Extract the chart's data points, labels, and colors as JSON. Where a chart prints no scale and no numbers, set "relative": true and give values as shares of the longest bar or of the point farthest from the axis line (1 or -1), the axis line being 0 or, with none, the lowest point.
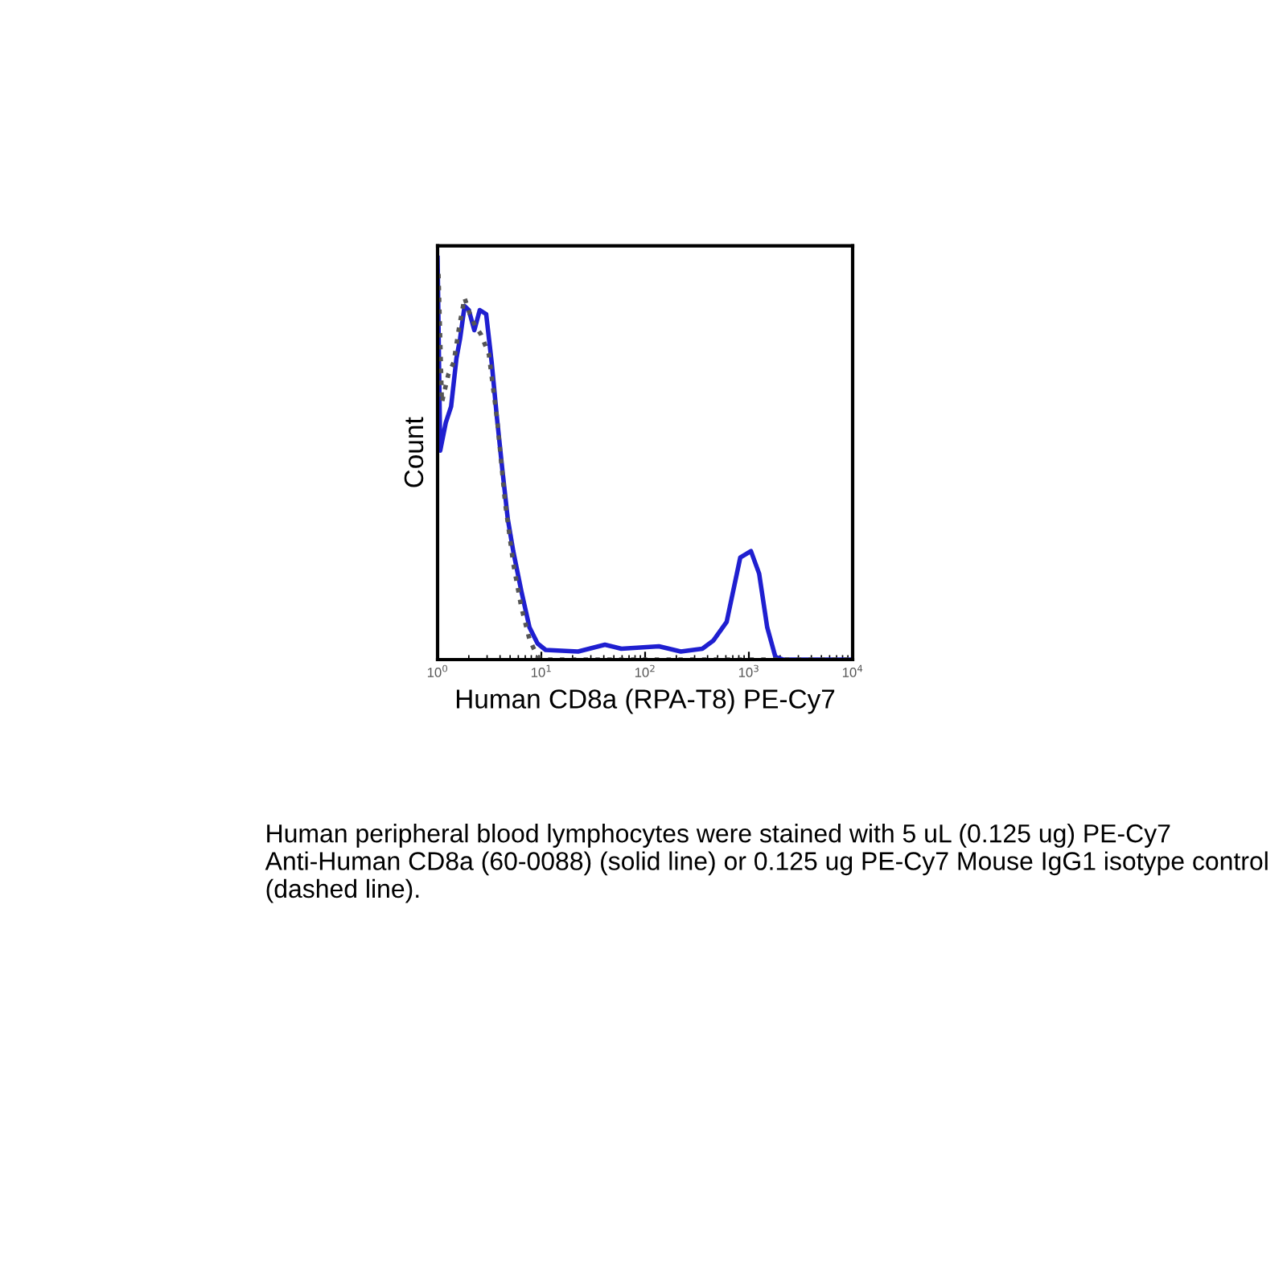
{
  "chart_data": {
    "type": "line",
    "relative": true,
    "log": "x",
    "xlabel": "Human CD8a (RPA-T8) PE-Cy7",
    "ylabel": "Count",
    "xlim": [
      1,
      10000
    ],
    "xticks": [
      {
        "value": 1,
        "label": "10$^{0}$"
      },
      {
        "value": 10,
        "label": "10$^{1}$"
      },
      {
        "value": 100,
        "label": "10$^{2}$"
      },
      {
        "value": 1000,
        "label": "10$^{3}$"
      },
      {
        "value": 10000,
        "label": "10$^{4}$"
      }
    ],
    "grid": false,
    "legend": false,
    "series": [
      {
        "color": "#1f1fd0",
        "line_style": "solid",
        "x": [
          1.0,
          1.06,
          1.2,
          1.35,
          1.52,
          1.65,
          1.82,
          2.0,
          2.26,
          2.55,
          2.94,
          3.32,
          3.74,
          4.22,
          4.75,
          5.36,
          6.42,
          7.69,
          9.2,
          11.0,
          22.6,
          41,
          59,
          136,
          221,
          356,
          453,
          611,
          826,
          1047,
          1256,
          1503,
          1800,
          2154,
          10000
        ],
        "values": [
          1.0,
          0.52,
          0.59,
          0.63,
          0.75,
          0.8,
          0.88,
          0.87,
          0.82,
          0.87,
          0.86,
          0.74,
          0.6,
          0.47,
          0.35,
          0.27,
          0.17,
          0.08,
          0.04,
          0.024,
          0.02,
          0.037,
          0.027,
          0.033,
          0.02,
          0.027,
          0.047,
          0.094,
          0.254,
          0.27,
          0.214,
          0.08,
          0.007,
          0,
          0
        ]
      },
      {
        "color": "#555555",
        "line_style": "dotted",
        "x": [
          1.02,
          1.1,
          1.27,
          1.43,
          1.62,
          1.82,
          2.05,
          2.31,
          2.61,
          3.12,
          3.74,
          4.48,
          5.36,
          6.42,
          7.69,
          9.2,
          11.0,
          10000
        ],
        "values": [
          0.96,
          0.64,
          0.71,
          0.74,
          0.83,
          0.9,
          0.86,
          0.83,
          0.81,
          0.76,
          0.6,
          0.39,
          0.24,
          0.13,
          0.05,
          0.007,
          0,
          0
        ]
      }
    ],
    "annotations": [
      "Human peripheral blood lymphocytes were stained with 5 uL (0.125 ug) PE-Cy7 Anti-Human CD8a (60-0088) (solid line) or 0.125 ug PE-Cy7 Mouse IgG1 isotype control (dashed line)."
    ]
  }
}
